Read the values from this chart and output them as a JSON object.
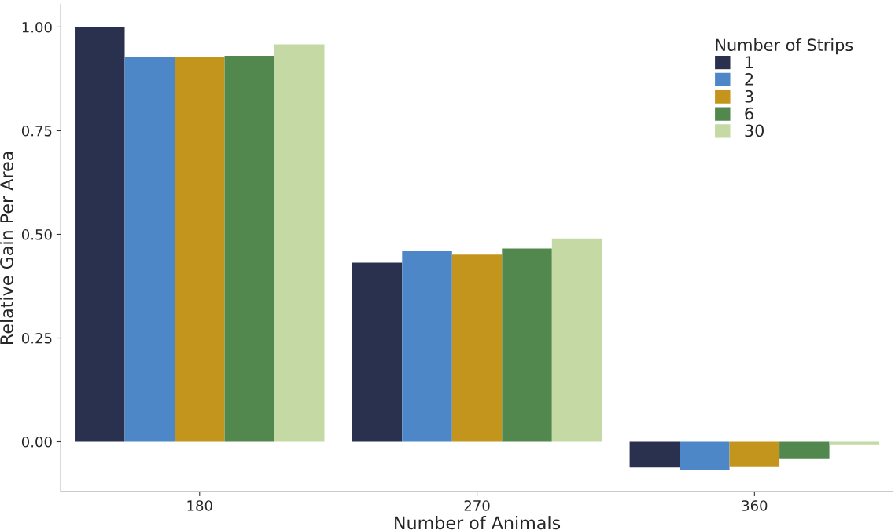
{
  "chart_data": {
    "type": "bar",
    "xlabel": "Number of Animals",
    "ylabel": "Relative Gain Per Area",
    "legend_title": "Number of Strips",
    "categories": [
      "180",
      "270",
      "360"
    ],
    "series": [
      {
        "name": "1",
        "color": "#29314f",
        "values": [
          1.0,
          0.432,
          -0.062
        ]
      },
      {
        "name": "2",
        "color": "#4d87c7",
        "values": [
          0.928,
          0.459,
          -0.067
        ]
      },
      {
        "name": "3",
        "color": "#c4951d",
        "values": [
          0.928,
          0.451,
          -0.061
        ]
      },
      {
        "name": "6",
        "color": "#52884d",
        "values": [
          0.931,
          0.466,
          -0.04
        ]
      },
      {
        "name": "30",
        "color": "#c4d9a4",
        "values": [
          0.958,
          0.49,
          -0.008
        ]
      }
    ],
    "ylim": [
      -0.121,
      1.055
    ],
    "yticks": [
      {
        "value": 0,
        "label": "0.00"
      },
      {
        "value": 0.25,
        "label": "0.25"
      },
      {
        "value": 0.5,
        "label": "0.50"
      },
      {
        "value": 0.75,
        "label": "0.75"
      },
      {
        "value": 1.0,
        "label": "1.00"
      }
    ],
    "grid": false,
    "legend": "top right"
  }
}
